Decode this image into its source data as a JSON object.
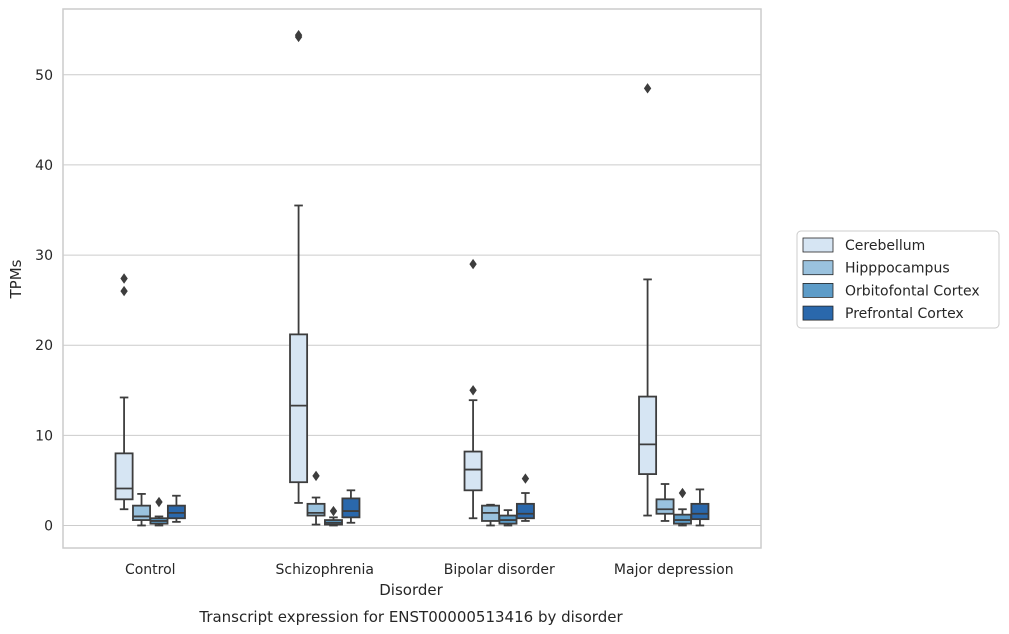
{
  "chart_data": {
    "type": "box",
    "title": "",
    "caption": "Transcript expression for ENST00000513416 by disorder",
    "xlabel": "Disorder",
    "ylabel": "TPMs",
    "ylim": [
      -2.5,
      57.3
    ],
    "yticks": [
      0,
      10,
      20,
      30,
      40,
      50
    ],
    "grid": "horizontal",
    "legend_position": "right",
    "categories": [
      "Control",
      "Schizophrenia",
      "Bipolar disorder",
      "Major depression"
    ],
    "series": [
      {
        "name": "Cerebellum",
        "color": "#d6e5f3",
        "boxes": [
          {
            "whisker_low": 1.8,
            "q1": 2.9,
            "median": 4.1,
            "q3": 8.0,
            "whisker_high": 14.2,
            "outliers": [
              26.0,
              27.4
            ]
          },
          {
            "whisker_low": 2.5,
            "q1": 4.8,
            "median": 13.3,
            "q3": 21.2,
            "whisker_high": 35.5,
            "outliers": [
              54.2,
              54.4
            ]
          },
          {
            "whisker_low": 0.8,
            "q1": 3.9,
            "median": 6.2,
            "q3": 8.2,
            "whisker_high": 13.9,
            "outliers": [
              15.0,
              29.0
            ]
          },
          {
            "whisker_low": 1.1,
            "q1": 5.7,
            "median": 9.0,
            "q3": 14.3,
            "whisker_high": 27.3,
            "outliers": [
              48.5
            ]
          }
        ]
      },
      {
        "name": "Hipppocampus",
        "color": "#9ac2de",
        "boxes": [
          {
            "whisker_low": 0.0,
            "q1": 0.6,
            "median": 1.0,
            "q3": 2.2,
            "whisker_high": 3.5,
            "outliers": []
          },
          {
            "whisker_low": 0.1,
            "q1": 1.1,
            "median": 1.4,
            "q3": 2.4,
            "whisker_high": 3.1,
            "outliers": [
              5.5
            ]
          },
          {
            "whisker_low": 0.0,
            "q1": 0.5,
            "median": 1.4,
            "q3": 2.2,
            "whisker_high": 2.3,
            "outliers": []
          },
          {
            "whisker_low": 0.5,
            "q1": 1.3,
            "median": 1.8,
            "q3": 2.9,
            "whisker_high": 4.6,
            "outliers": []
          }
        ]
      },
      {
        "name": "Orbitofontal Cortex",
        "color": "#5d9cc8",
        "boxes": [
          {
            "whisker_low": 0.0,
            "q1": 0.2,
            "median": 0.5,
            "q3": 0.8,
            "whisker_high": 1.0,
            "outliers": [
              2.6
            ]
          },
          {
            "whisker_low": 0.0,
            "q1": 0.1,
            "median": 0.3,
            "q3": 0.6,
            "whisker_high": 0.9,
            "outliers": [
              1.6
            ]
          },
          {
            "whisker_low": 0.0,
            "q1": 0.2,
            "median": 0.6,
            "q3": 1.1,
            "whisker_high": 1.7,
            "outliers": []
          },
          {
            "whisker_low": 0.0,
            "q1": 0.2,
            "median": 0.6,
            "q3": 1.2,
            "whisker_high": 1.8,
            "outliers": [
              3.6
            ]
          }
        ]
      },
      {
        "name": "Prefrontal Cortex",
        "color": "#2a68ac",
        "boxes": [
          {
            "whisker_low": 0.4,
            "q1": 0.8,
            "median": 1.4,
            "q3": 2.2,
            "whisker_high": 3.3,
            "outliers": []
          },
          {
            "whisker_low": 0.3,
            "q1": 0.9,
            "median": 1.6,
            "q3": 3.0,
            "whisker_high": 3.9,
            "outliers": []
          },
          {
            "whisker_low": 0.5,
            "q1": 0.8,
            "median": 1.3,
            "q3": 2.4,
            "whisker_high": 3.6,
            "outliers": [
              5.2
            ]
          },
          {
            "whisker_low": 0.0,
            "q1": 0.7,
            "median": 1.3,
            "q3": 2.4,
            "whisker_high": 4.0,
            "outliers": []
          }
        ]
      }
    ]
  }
}
